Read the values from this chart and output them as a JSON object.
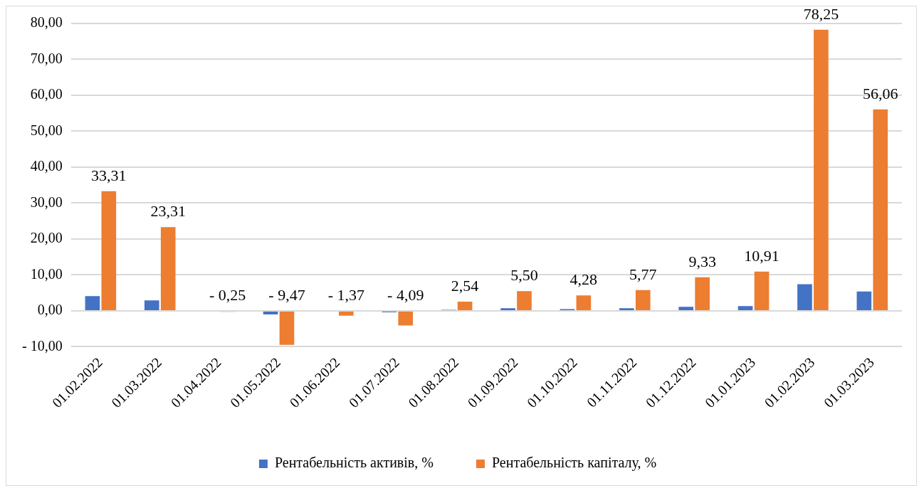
{
  "chart_data": {
    "type": "bar",
    "categories": [
      "01.02.2022",
      "01.03.2022",
      "01.04.2022",
      "01.05.2022",
      "01.06.2022",
      "01.07.2022",
      "01.08.2022",
      "01.09.2022",
      "01.10.2022",
      "01.11.2022",
      "01.12.2022",
      "01.01.2023",
      "01.02.2023",
      "01.03.2023"
    ],
    "series": [
      {
        "name": "Рентабельність активів, %",
        "color": "#4472c4",
        "values": [
          4.1,
          2.9,
          0,
          -1.0,
          0,
          -0.4,
          0.3,
          0.7,
          0.5,
          0.7,
          1.1,
          1.3,
          7.4,
          5.4
        ]
      },
      {
        "name": "Рентабельність капіталу, %",
        "color": "#ed7d31",
        "values": [
          33.31,
          23.31,
          -0.25,
          -9.47,
          -1.37,
          -4.09,
          2.54,
          5.5,
          4.28,
          5.77,
          9.33,
          10.91,
          78.25,
          56.06
        ],
        "value_labels": [
          "33,31",
          "23,31",
          "- 0,25",
          "- 9,47",
          "- 1,37",
          "- 4,09",
          "2,54",
          "5,50",
          "4,28",
          "5,77",
          "9,33",
          "10,91",
          "78,25",
          "56,06"
        ]
      }
    ],
    "ylim": [
      -10,
      80
    ],
    "yticks": [
      {
        "value": -10,
        "label": "- 10,00"
      },
      {
        "value": 0,
        "label": "0,00"
      },
      {
        "value": 10,
        "label": "10,00"
      },
      {
        "value": 20,
        "label": "20,00"
      },
      {
        "value": 30,
        "label": "30,00"
      },
      {
        "value": 40,
        "label": "40,00"
      },
      {
        "value": 50,
        "label": "50,00"
      },
      {
        "value": 60,
        "label": "60,00"
      },
      {
        "value": 70,
        "label": "70,00"
      },
      {
        "value": 80,
        "label": "80,00"
      }
    ],
    "grid": "y",
    "legend": "bottom"
  }
}
